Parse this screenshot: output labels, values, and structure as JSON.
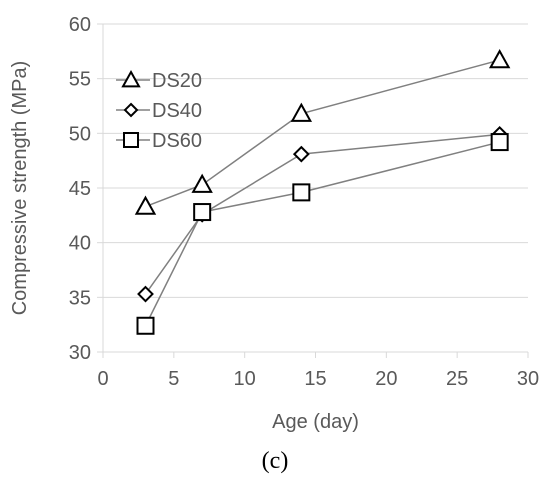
{
  "chart_data": {
    "type": "line",
    "xlabel": "Age (day)",
    "ylabel": "Compressive strength (MPa)",
    "xlim": [
      0,
      30
    ],
    "ylim": [
      30,
      60
    ],
    "xticks": [
      "0",
      "5",
      "10",
      "15",
      "20",
      "25",
      "30"
    ],
    "yticks": [
      "30",
      "35",
      "40",
      "45",
      "50",
      "55",
      "60"
    ],
    "grid": "horizontal",
    "legend_position": "top-left",
    "series": [
      {
        "name": "DS20",
        "marker": "triangle",
        "x": [
          3,
          7,
          14,
          28
        ],
        "y": [
          43.3,
          45.3,
          51.8,
          56.7
        ]
      },
      {
        "name": "DS40",
        "marker": "diamond",
        "x": [
          3,
          7,
          14,
          28
        ],
        "y": [
          35.3,
          42.6,
          48.1,
          49.9
        ]
      },
      {
        "name": "DS60",
        "marker": "square",
        "x": [
          3,
          7,
          14,
          28
        ],
        "y": [
          32.4,
          42.8,
          44.6,
          49.2
        ]
      }
    ],
    "line_color": "#808080",
    "marker_stroke": "#000000"
  },
  "caption": "(c)"
}
